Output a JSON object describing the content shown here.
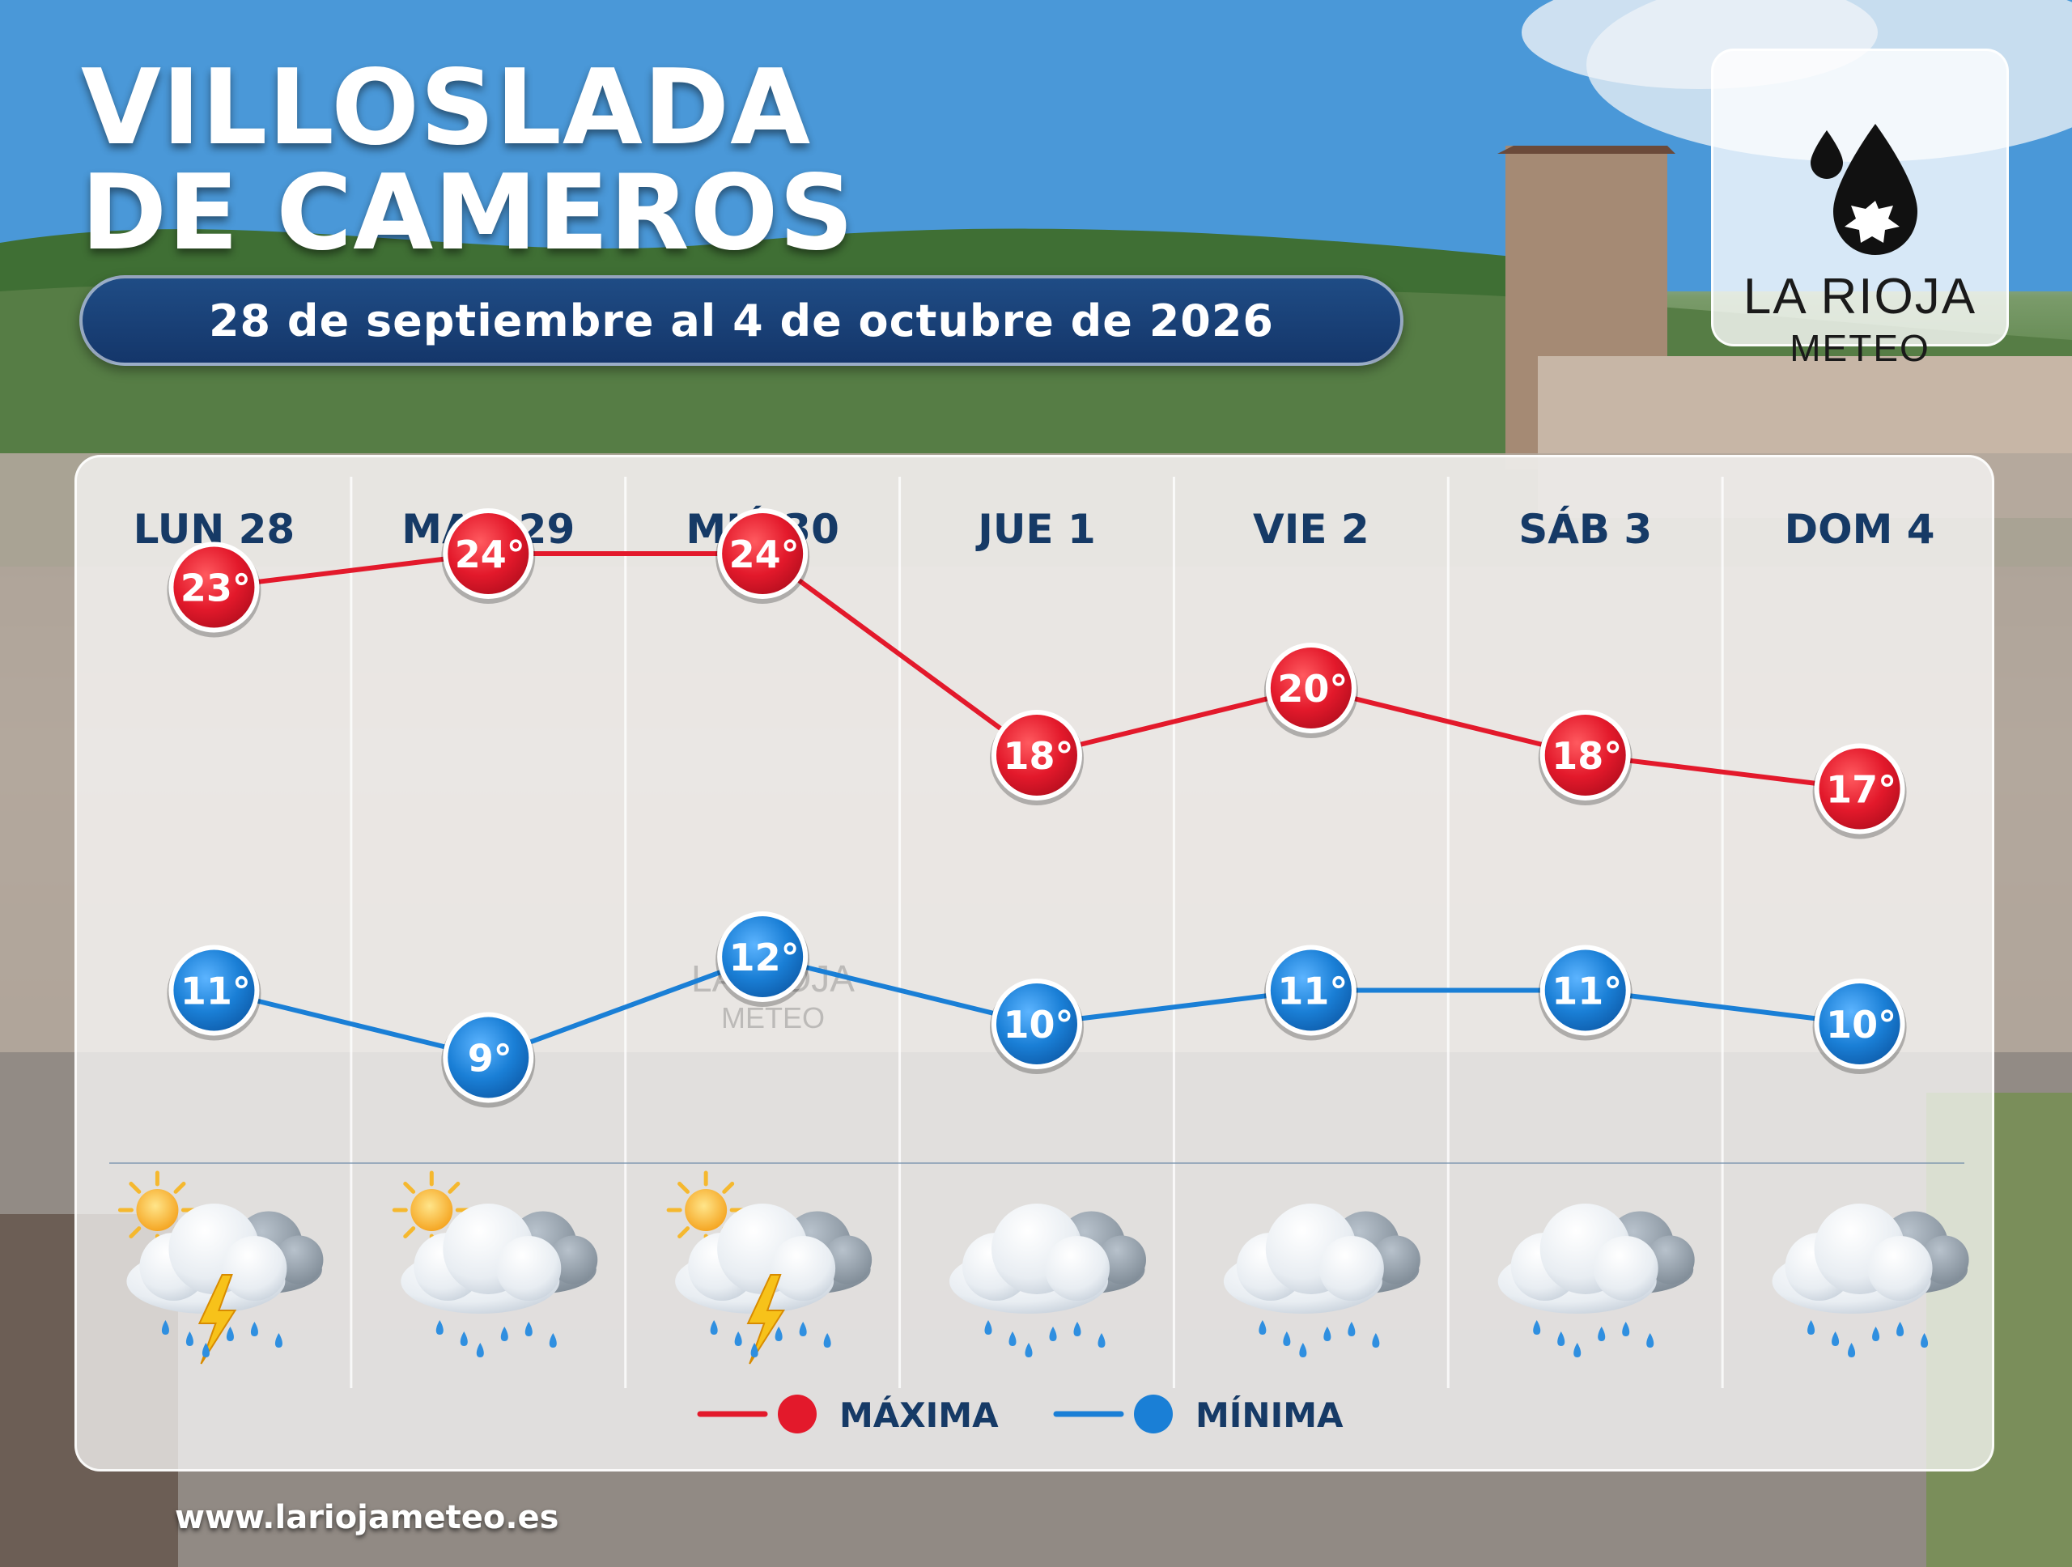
{
  "header": {
    "title_line1": "VILLOSLADA",
    "title_line2": "DE CAMEROS",
    "date_range": "28 de septiembre al 4 de octubre de 2026"
  },
  "logo": {
    "line1": "LA RIOJA",
    "line2": "METEO",
    "icon": "water-drop-leaf-icon"
  },
  "watermark": {
    "line1": "LA RIOJA",
    "line2": "METEO"
  },
  "footer": {
    "url": "www.lariojameteo.es"
  },
  "colors": {
    "max": "#e3192b",
    "min": "#1a7fd6",
    "header_text": "#163a66",
    "pill_bg": "#173f75"
  },
  "chart_data": {
    "type": "line",
    "categories": [
      "LUN 28",
      "MAR 29",
      "MIÉ 30",
      "JUE 1",
      "VIE 2",
      "SÁB 3",
      "DOM 4"
    ],
    "series": [
      {
        "name": "MÁXIMA",
        "values": [
          23,
          24,
          24,
          18,
          20,
          18,
          17
        ],
        "color": "#e3192b",
        "labels": [
          "23°",
          "24°",
          "24°",
          "18°",
          "20°",
          "18°",
          "17°"
        ]
      },
      {
        "name": "MÍNIMA",
        "values": [
          11,
          9,
          12,
          10,
          11,
          11,
          10
        ],
        "color": "#1a7fd6",
        "labels": [
          "11°",
          "9°",
          "12°",
          "10°",
          "11°",
          "11°",
          "10°"
        ]
      }
    ],
    "weather_icons": [
      "sun-cloud-thunderstorm-icon",
      "sun-cloud-rain-icon",
      "sun-cloud-thunderstorm-icon",
      "cloud-rain-icon",
      "cloud-rain-icon",
      "cloud-rain-icon",
      "cloud-rain-icon"
    ],
    "legend": [
      "MÁXIMA",
      "MÍNIMA"
    ],
    "legend_position": "bottom-center",
    "grid": "vertical-day-separators"
  }
}
